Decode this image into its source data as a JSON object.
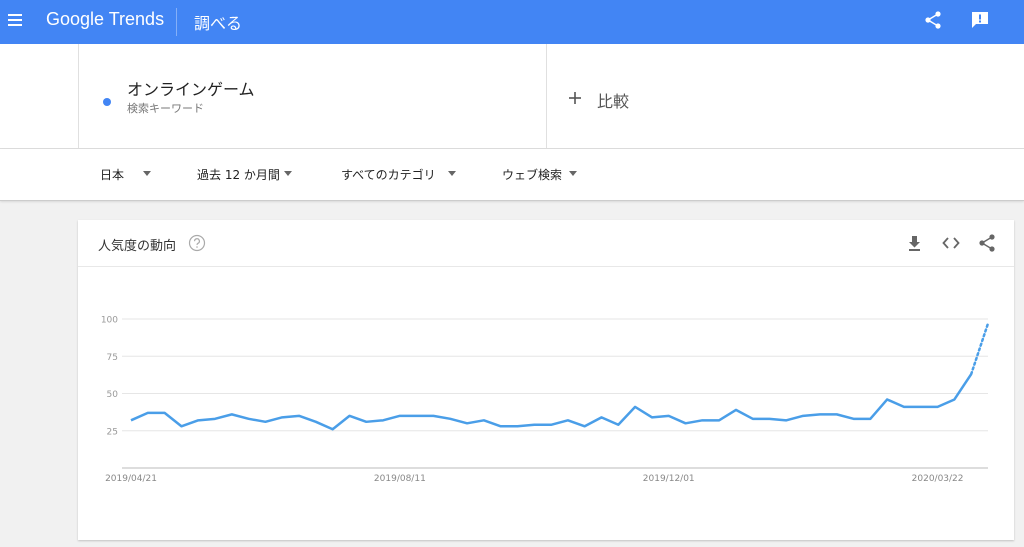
{
  "header": {
    "logo": "Google Trends",
    "title": "調べる"
  },
  "search": {
    "term": "オンラインゲーム",
    "term_type": "検索キーワード",
    "compare": "比較"
  },
  "filters": [
    "日本",
    "過去 12 か月間",
    "すべてのカテゴリ",
    "ウェブ検索"
  ],
  "chart_data": {
    "type": "line",
    "title": "人気度の動向",
    "categories": [
      "2019/04/21",
      null,
      null,
      null,
      null,
      null,
      null,
      null,
      null,
      null,
      null,
      null,
      null,
      null,
      null,
      null,
      "2019/08/11",
      null,
      null,
      null,
      null,
      null,
      null,
      null,
      null,
      null,
      null,
      null,
      null,
      null,
      null,
      null,
      "2019/12/01",
      null,
      null,
      null,
      null,
      null,
      null,
      null,
      null,
      null,
      null,
      null,
      null,
      null,
      null,
      null,
      "2020/03/22",
      null,
      null,
      null
    ],
    "values": [
      32,
      37,
      37,
      28,
      32,
      33,
      36,
      33,
      31,
      34,
      35,
      31,
      26,
      35,
      31,
      32,
      35,
      35,
      35,
      33,
      30,
      32,
      28,
      28,
      29,
      29,
      32,
      28,
      34,
      29,
      41,
      34,
      35,
      30,
      32,
      32,
      39,
      33,
      33,
      32,
      35,
      36,
      36,
      33,
      33,
      46,
      41,
      41,
      41,
      46,
      63,
      97
    ],
    "color": "#4a9ee8",
    "partial_last": true,
    "ylim": [
      0,
      100
    ],
    "yticks": [
      25,
      50,
      75,
      100
    ],
    "grid": true
  }
}
